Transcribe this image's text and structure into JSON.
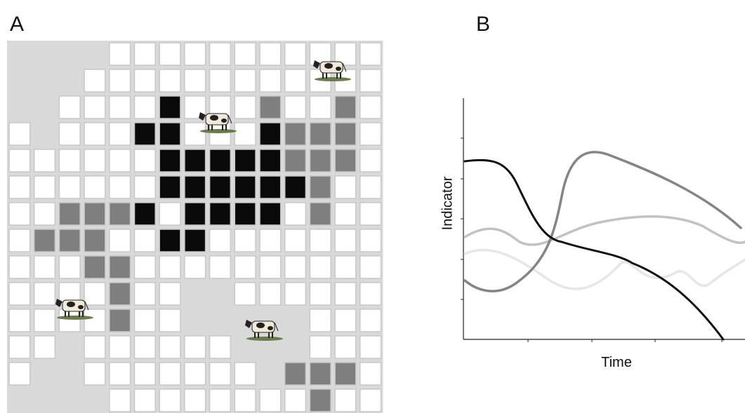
{
  "panels": [
    {
      "label": "A"
    },
    {
      "label": "B",
      "y_axis_label": "Indicator",
      "x_axis_label": "Time"
    }
  ]
}
